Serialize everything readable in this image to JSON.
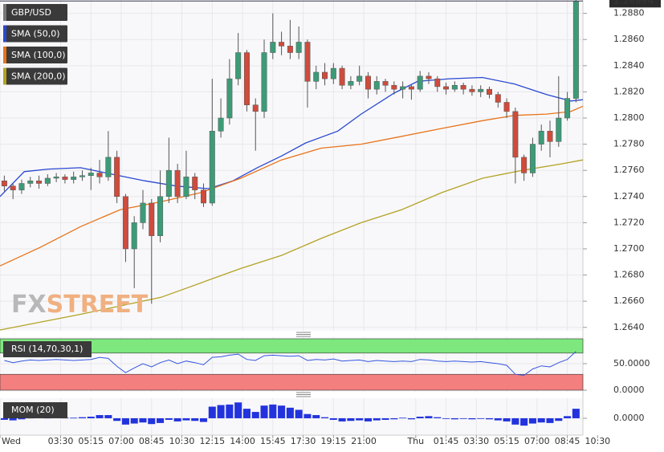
{
  "chart_data": [
    {
      "type": "candlestick",
      "title": "GBP/USD",
      "open": [
        1.2752,
        1.2748,
        1.2745,
        1.275,
        1.2752,
        1.275,
        1.2754,
        1.2755,
        1.2753,
        1.2755,
        1.2756,
        1.2758,
        1.2755,
        1.277,
        1.274,
        1.27,
        1.272,
        1.2735,
        1.271,
        1.274,
        1.276,
        1.274,
        1.2755,
        1.2745,
        1.2735,
        1.279,
        1.28,
        1.283,
        1.285,
        1.281,
        1.2805,
        1.285,
        1.2858,
        1.2855,
        1.285,
        1.2858,
        1.2828,
        1.2835,
        1.283,
        1.2838,
        1.2825,
        1.2828,
        1.2832,
        1.2822,
        1.2828,
        1.2825,
        1.2822,
        1.2824,
        1.2822,
        1.2832,
        1.283,
        1.2824,
        1.2822,
        1.2825,
        1.2822,
        1.282,
        1.2822,
        1.2818,
        1.2812,
        1.2805,
        1.277,
        1.2758,
        1.278,
        1.279,
        1.2782,
        1.28,
        1.2815
      ],
      "high": [
        1.2756,
        1.275,
        1.2753,
        1.2755,
        1.2756,
        1.2757,
        1.2758,
        1.2757,
        1.2759,
        1.276,
        1.2762,
        1.2768,
        1.279,
        1.2775,
        1.2742,
        1.2725,
        1.2745,
        1.2738,
        1.276,
        1.2785,
        1.2765,
        1.2775,
        1.2758,
        1.275,
        1.283,
        1.2815,
        1.2845,
        1.2865,
        1.2852,
        1.2815,
        1.286,
        1.288,
        1.2866,
        1.2875,
        1.287,
        1.286,
        1.284,
        1.2842,
        1.2842,
        1.284,
        1.2832,
        1.284,
        1.2835,
        1.2832,
        1.283,
        1.2828,
        1.2828,
        1.2826,
        1.2836,
        1.2835,
        1.2832,
        1.2827,
        1.2828,
        1.2827,
        1.2825,
        1.2825,
        1.2824,
        1.282,
        1.2815,
        1.2808,
        1.2772,
        1.2785,
        1.2795,
        1.2798,
        1.2832,
        1.282,
        1.2892
      ],
      "low": [
        1.2744,
        1.2738,
        1.2742,
        1.2747,
        1.2746,
        1.2748,
        1.2751,
        1.275,
        1.275,
        1.2752,
        1.2745,
        1.275,
        1.2752,
        1.2735,
        1.269,
        1.267,
        1.2715,
        1.2658,
        1.2705,
        1.2735,
        1.2735,
        1.2738,
        1.2738,
        1.2732,
        1.2733,
        1.2785,
        1.2795,
        1.2825,
        1.2805,
        1.2775,
        1.28,
        1.2845,
        1.2848,
        1.2845,
        1.2845,
        1.2808,
        1.2822,
        1.2825,
        1.2826,
        1.2822,
        1.2822,
        1.2825,
        1.2815,
        1.2818,
        1.282,
        1.2818,
        1.2815,
        1.2814,
        1.282,
        1.2826,
        1.282,
        1.2818,
        1.282,
        1.2818,
        1.2817,
        1.2816,
        1.2815,
        1.2808,
        1.28,
        1.275,
        1.2752,
        1.2755,
        1.2775,
        1.277,
        1.2778,
        1.2798,
        1.2812
      ],
      "close": [
        1.2748,
        1.2745,
        1.275,
        1.2752,
        1.275,
        1.2754,
        1.2755,
        1.2753,
        1.2755,
        1.2756,
        1.2758,
        1.2755,
        1.277,
        1.274,
        1.27,
        1.272,
        1.2735,
        1.271,
        1.274,
        1.276,
        1.274,
        1.2755,
        1.2745,
        1.2735,
        1.279,
        1.28,
        1.283,
        1.285,
        1.281,
        1.2805,
        1.285,
        1.2858,
        1.2855,
        1.285,
        1.2858,
        1.2828,
        1.2835,
        1.283,
        1.2838,
        1.2825,
        1.2828,
        1.2832,
        1.2822,
        1.2828,
        1.2825,
        1.2822,
        1.2824,
        1.2822,
        1.2832,
        1.283,
        1.2824,
        1.2822,
        1.2825,
        1.2822,
        1.282,
        1.2822,
        1.2818,
        1.2812,
        1.2805,
        1.277,
        1.2758,
        1.278,
        1.279,
        1.2782,
        1.28,
        1.2815,
        1.28894
      ],
      "up_color": "#3d9b78",
      "down_color": "#cf4b3c",
      "overlays": [
        {
          "name": "SMA (50,0)",
          "color": "#2a48d0",
          "x": [
            0,
            2.8,
            5.6,
            9.3,
            13,
            16.7,
            20.4,
            24.1,
            26.9,
            29.7,
            32.5,
            35.3,
            39,
            41.7,
            45.5,
            48.2,
            51.9,
            55.7,
            59.4,
            63.1,
            65.9,
            67.3
          ],
          "values": [
            1.274,
            1.2759,
            1.2761,
            1.2762,
            1.2757,
            1.2752,
            1.2748,
            1.2746,
            1.2752,
            1.2762,
            1.2771,
            1.2781,
            1.279,
            1.2803,
            1.2819,
            1.2828,
            1.283,
            1.2831,
            1.2826,
            1.2818,
            1.2813,
            1.2814
          ]
        },
        {
          "name": "SMA (100,0)",
          "color": "#e8731a",
          "x": [
            0,
            4.6,
            9.3,
            13.9,
            18.6,
            23.2,
            27.8,
            32.5,
            37.1,
            41.7,
            46.4,
            51,
            55.7,
            59.4,
            63.1,
            65.9,
            67.3
          ],
          "values": [
            1.2687,
            1.2701,
            1.2717,
            1.273,
            1.2736,
            1.2743,
            1.2754,
            1.2768,
            1.2777,
            1.278,
            1.2786,
            1.2792,
            1.2798,
            1.2802,
            1.2803,
            1.2805,
            1.2809
          ]
        },
        {
          "name": "SMA (200,0)",
          "color": "#b3a224",
          "x": [
            0,
            9.3,
            18.6,
            27.8,
            32.5,
            37.1,
            41.7,
            46.4,
            51,
            55.7,
            60.3,
            64.9,
            67.3
          ],
          "values": [
            1.2638,
            1.265,
            1.2663,
            1.2685,
            1.2695,
            1.2708,
            1.272,
            1.273,
            1.2743,
            1.2754,
            1.276,
            1.2765,
            1.2768
          ]
        }
      ],
      "xlim": [
        0,
        67.3
      ],
      "xticks": [
        {
          "value": 0,
          "label": "Wed"
        },
        {
          "value": 7,
          "label": "03:30"
        },
        {
          "value": 10.5,
          "label": "05:15"
        },
        {
          "value": 14,
          "label": "07:00"
        },
        {
          "value": 17.5,
          "label": "08:45"
        },
        {
          "value": 21,
          "label": "10:30"
        },
        {
          "value": 24.5,
          "label": "12:15"
        },
        {
          "value": 28,
          "label": "14:00"
        },
        {
          "value": 31.5,
          "label": "15:45"
        },
        {
          "value": 35,
          "label": "17:30"
        },
        {
          "value": 38.5,
          "label": "19:15"
        },
        {
          "value": 42,
          "label": "21:00"
        },
        {
          "value": 48,
          "label": "Thu"
        },
        {
          "value": 51.5,
          "label": "01:45"
        },
        {
          "value": 55,
          "label": "03:30"
        },
        {
          "value": 58.5,
          "label": "05:15"
        },
        {
          "value": 62,
          "label": "07:00"
        },
        {
          "value": 65.5,
          "label": "08:45"
        },
        {
          "value": 69,
          "label": "10:30"
        }
      ],
      "ylim": [
        1.26374,
        1.28902
      ],
      "yticks": [
        {
          "value": 1.264,
          "label": "1.2640"
        },
        {
          "value": 1.266,
          "label": "1.2660"
        },
        {
          "value": 1.268,
          "label": "1.2680"
        },
        {
          "value": 1.27,
          "label": "1.2700"
        },
        {
          "value": 1.272,
          "label": "1.2720"
        },
        {
          "value": 1.274,
          "label": "1.2740"
        },
        {
          "value": 1.276,
          "label": "1.2760"
        },
        {
          "value": 1.278,
          "label": "1.2780"
        },
        {
          "value": 1.28,
          "label": "1.2800"
        },
        {
          "value": 1.282,
          "label": "1.2820"
        },
        {
          "value": 1.284,
          "label": "1.2840"
        },
        {
          "value": 1.286,
          "label": "1.2860"
        },
        {
          "value": 1.288,
          "label": "1.2880"
        }
      ],
      "grid": true,
      "watermark": {
        "left": "FX",
        "right": "STREET"
      }
    },
    {
      "type": "line",
      "title": "RSI (14,70,30,1)",
      "color": "#3355dd",
      "values": [
        56,
        52,
        55,
        57,
        56,
        57,
        58,
        57,
        56,
        57,
        58,
        62,
        60,
        45,
        33,
        42,
        50,
        44,
        52,
        57,
        50,
        55,
        52,
        48,
        62,
        63,
        66,
        68,
        58,
        56,
        65,
        66,
        65,
        64,
        65,
        56,
        58,
        57,
        59,
        55,
        56,
        57,
        54,
        56,
        55,
        54,
        55,
        54,
        58,
        57,
        55,
        54,
        55,
        54,
        53,
        54,
        52,
        50,
        47,
        30,
        28,
        40,
        46,
        44,
        52,
        58,
        73
      ],
      "upper_band": 70,
      "lower_band": 30,
      "ylim": [
        -3,
        100
      ],
      "yticks": [
        {
          "value": 0,
          "label": "0.0000"
        },
        {
          "value": 50,
          "label": "50.0000"
        }
      ]
    },
    {
      "type": "bar",
      "title": "MOM (20)",
      "color": "#2233dd",
      "values": [
        -0.0003,
        -0.0004,
        -0.0002,
        0.0001,
        0.0002,
        0.0001,
        0.0002,
        0.0001,
        0.0001,
        0.0002,
        0.0003,
        0.0006,
        0.0006,
        -0.0005,
        -0.0012,
        -0.001,
        -0.0008,
        -0.0011,
        -0.0009,
        -0.0003,
        -0.0006,
        -0.0004,
        -0.0005,
        -0.0007,
        0.0022,
        0.0025,
        0.0026,
        0.003,
        0.0018,
        0.0012,
        0.0024,
        0.0026,
        0.0024,
        0.002,
        0.0016,
        0.0008,
        0.0006,
        0.0002,
        -0.0003,
        -0.0006,
        -0.0005,
        -0.0004,
        -0.0006,
        -0.0004,
        -0.0003,
        -0.0002,
        0.0001,
        -0.0002,
        0.0003,
        0.0004,
        0.0002,
        -0.0001,
        -0.0002,
        -0.0001,
        -0.0002,
        -0.0001,
        -0.0002,
        -0.0004,
        -0.0006,
        -0.0012,
        -0.0014,
        -0.001,
        -0.0008,
        -0.0009,
        -0.0005,
        0.0004,
        0.0018
      ],
      "ylim": [
        -0.0032,
        0.0038
      ],
      "yticks": [
        {
          "value": 0,
          "label": "0.0000"
        }
      ]
    }
  ]
}
